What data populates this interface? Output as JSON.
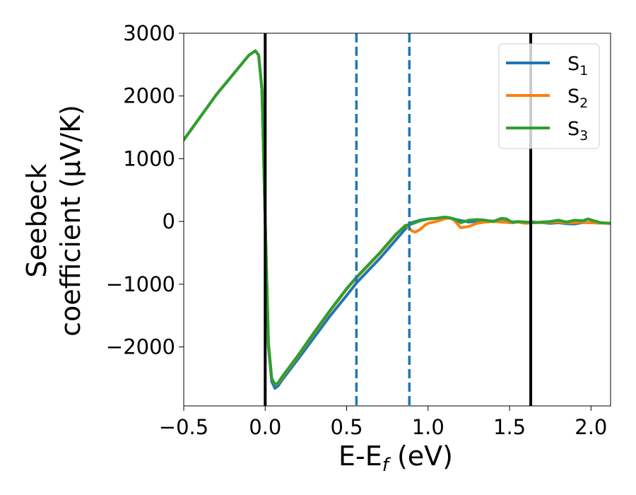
{
  "chart_data": {
    "type": "line",
    "xlabel": "E-E",
    "xlabel_sub": "f",
    "xlabel_unit": " (eV)",
    "ylabel_line1": "Seebeck",
    "ylabel_line2": "coefficient  (μV/K)",
    "xlim": [
      -0.5,
      2.12
    ],
    "ylim": [
      -2940,
      3000
    ],
    "xticks": [
      -0.5,
      0.0,
      0.5,
      1.0,
      1.5,
      2.0
    ],
    "xtick_labels": [
      "−0.5",
      "0.0",
      "0.5",
      "1.0",
      "1.5",
      "2.0"
    ],
    "yticks": [
      -2000,
      -1000,
      0,
      1000,
      2000,
      3000
    ],
    "ytick_labels": [
      "−2000",
      "−1000",
      "0",
      "1000",
      "2000",
      "3000"
    ],
    "grid": false,
    "legend_position": "top-right",
    "vertical_lines": [
      {
        "x": 0.0,
        "style": "solid",
        "color": "#000000"
      },
      {
        "x": 1.63,
        "style": "solid",
        "color": "#000000"
      },
      {
        "x": 0.56,
        "style": "dashed",
        "color": "#1f77b4"
      },
      {
        "x": 0.885,
        "style": "dashed",
        "color": "#1f77b4"
      }
    ],
    "series": [
      {
        "name": "S",
        "sub": "1",
        "color": "#1f77b4",
        "x": [
          -0.5,
          -0.3,
          -0.1,
          -0.06,
          -0.04,
          -0.02,
          0.0,
          0.02,
          0.04,
          0.06,
          0.08,
          0.1,
          0.2,
          0.3,
          0.4,
          0.5,
          0.56,
          0.7,
          0.8,
          0.86,
          0.9,
          0.95,
          1.0,
          1.05,
          1.1,
          1.15,
          1.2,
          1.25,
          1.3,
          1.35,
          1.4,
          1.45,
          1.5,
          1.55,
          1.6,
          1.65,
          1.7,
          1.75,
          1.8,
          1.85,
          1.9,
          1.95,
          2.0,
          2.05,
          2.12
        ],
        "y": [
          1300,
          2020,
          2650,
          2720,
          2650,
          2100,
          0,
          -2000,
          -2550,
          -2660,
          -2620,
          -2540,
          -2200,
          -1850,
          -1500,
          -1180,
          -980,
          -600,
          -300,
          -120,
          -20,
          20,
          40,
          50,
          60,
          45,
          15,
          -10,
          5,
          10,
          5,
          0,
          -10,
          -5,
          -15,
          -10,
          -20,
          -30,
          -20,
          -35,
          -40,
          -15,
          -20,
          -25,
          -30
        ]
      },
      {
        "name": "S",
        "sub": "2",
        "color": "#ff7f0e",
        "x": [
          -0.5,
          -0.3,
          -0.1,
          -0.06,
          -0.04,
          -0.02,
          0.0,
          0.02,
          0.04,
          0.06,
          0.08,
          0.1,
          0.2,
          0.3,
          0.4,
          0.5,
          0.56,
          0.7,
          0.8,
          0.86,
          0.88,
          0.9,
          0.92,
          0.95,
          0.98,
          1.0,
          1.05,
          1.1,
          1.13,
          1.16,
          1.2,
          1.25,
          1.3,
          1.35,
          1.4,
          1.45,
          1.5,
          1.55,
          1.6,
          1.65,
          1.7,
          1.75,
          1.8,
          1.85,
          1.9,
          1.95,
          2.0,
          2.05,
          2.12
        ],
        "y": [
          1300,
          2020,
          2650,
          2720,
          2650,
          2100,
          0,
          -1950,
          -2500,
          -2600,
          -2580,
          -2500,
          -2150,
          -1780,
          -1420,
          -1080,
          -900,
          -520,
          -220,
          -60,
          -90,
          -150,
          -170,
          -130,
          -60,
          -30,
          0,
          40,
          60,
          20,
          -100,
          -80,
          -30,
          -10,
          0,
          -10,
          -20,
          -10,
          -30,
          -20,
          -20,
          -10,
          -10,
          -20,
          -20,
          -10,
          -20,
          -25,
          -30
        ]
      },
      {
        "name": "S",
        "sub": "3",
        "color": "#2ca02c",
        "x": [
          -0.5,
          -0.3,
          -0.1,
          -0.06,
          -0.04,
          -0.02,
          0.0,
          0.02,
          0.04,
          0.06,
          0.08,
          0.1,
          0.2,
          0.3,
          0.4,
          0.5,
          0.56,
          0.7,
          0.8,
          0.86,
          0.88,
          0.9,
          0.95,
          1.0,
          1.05,
          1.1,
          1.13,
          1.16,
          1.2,
          1.25,
          1.3,
          1.35,
          1.4,
          1.45,
          1.48,
          1.52,
          1.55,
          1.6,
          1.65,
          1.7,
          1.75,
          1.8,
          1.85,
          1.9,
          1.95,
          1.98,
          2.02,
          2.06,
          2.12
        ],
        "y": [
          1300,
          2020,
          2650,
          2720,
          2650,
          2100,
          0,
          -1950,
          -2500,
          -2600,
          -2570,
          -2490,
          -2140,
          -1770,
          -1410,
          -1070,
          -890,
          -510,
          -210,
          -70,
          -50,
          -40,
          10,
          40,
          50,
          70,
          60,
          40,
          -20,
          20,
          30,
          20,
          0,
          50,
          40,
          -20,
          0,
          -10,
          -20,
          -10,
          0,
          20,
          -10,
          20,
          10,
          40,
          10,
          -20,
          -30
        ]
      }
    ]
  }
}
